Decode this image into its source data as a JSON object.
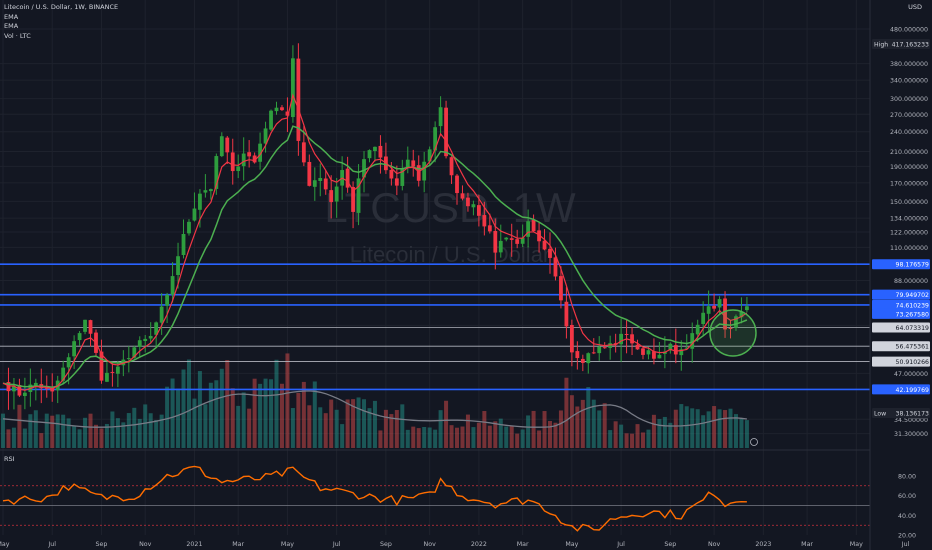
{
  "legend": {
    "title": "Litecoin / U.S. Dollar, 1W, BINANCE",
    "ema1": "EMA",
    "ema2": "EMA",
    "vol": "Vol · LTC"
  },
  "rsi_label": "RSI",
  "currency": "USD",
  "watermark": {
    "symbol": "LTCUSD, 1W",
    "name": "Litecoin / U.S. Dollar"
  },
  "colors": {
    "background": "#131722",
    "up": "#26a69a",
    "up_candle": "#2e9e3e",
    "down_candle": "#f23645",
    "ema_fast": "#f23645",
    "ema_slow": "#4caf50",
    "volume_ma": "#787b86",
    "hline_blue": "#2962ff",
    "hline_white": "#b2b5be",
    "rsi": "#ff6d00",
    "rsi_levels": "#cc2f3c"
  },
  "chart_data": {
    "type": "candlestick",
    "price_axis": {
      "scale": "log",
      "labels": [
        "480.000000",
        "380.000000",
        "340.000000",
        "300.000000",
        "270.000000",
        "240.000000",
        "210.000000",
        "190.000000",
        "170.000000",
        "150.000000",
        "134.000000",
        "122.000000",
        "110.000000",
        "88.000000",
        "65.000000",
        "47.000000",
        "34.500000",
        "31.300000"
      ],
      "label_values": [
        480,
        380,
        340,
        300,
        270,
        240,
        210,
        190,
        170,
        150,
        134,
        122,
        110,
        88,
        65,
        47,
        34.5,
        31.3
      ],
      "high_label": "High",
      "high_value": "417.163233",
      "low_label": "Low",
      "low_value": "38.136173"
    },
    "time_axis": {
      "labels": [
        "May",
        "Jul",
        "Sep",
        "Nov",
        "2021",
        "Mar",
        "May",
        "Jul",
        "Sep",
        "Nov",
        "2022",
        "Mar",
        "May",
        "Jul",
        "Sep",
        "Nov",
        "2023",
        "Mar",
        "May",
        "Jul"
      ],
      "label_index": [
        0,
        9,
        18,
        26,
        35,
        43,
        52,
        61,
        70,
        78,
        87,
        95,
        104,
        113,
        122,
        130,
        139,
        147,
        156,
        165
      ]
    },
    "horizontal_levels": [
      {
        "label": "98.176579",
        "value": 98.18,
        "style": "blue"
      },
      {
        "label": "79.949702",
        "value": 79.95,
        "style": "blue"
      },
      {
        "label": "74.610239",
        "value": 74.61,
        "style": "blue"
      },
      {
        "label": "73.267580",
        "value": 73.27,
        "style": "tag"
      },
      {
        "label": "64.073319",
        "value": 64.07,
        "style": "white"
      },
      {
        "label": "56.475361",
        "value": 56.48,
        "style": "white"
      },
      {
        "label": "50.910266",
        "value": 50.91,
        "style": "white"
      },
      {
        "label": "42.199769",
        "value": 42.2,
        "style": "blue"
      }
    ],
    "anchors": [
      [
        0,
        44
      ],
      [
        3,
        41
      ],
      [
        6,
        44
      ],
      [
        9,
        41
      ],
      [
        12,
        52
      ],
      [
        15,
        68
      ],
      [
        18,
        46
      ],
      [
        21,
        48
      ],
      [
        24,
        56
      ],
      [
        27,
        60
      ],
      [
        30,
        78
      ],
      [
        33,
        118
      ],
      [
        36,
        160
      ],
      [
        38,
        165
      ],
      [
        40,
        232
      ],
      [
        42,
        180
      ],
      [
        44,
        210
      ],
      [
        46,
        195
      ],
      [
        48,
        250
      ],
      [
        50,
        290
      ],
      [
        52,
        270
      ],
      [
        53,
        390
      ],
      [
        54,
        220
      ],
      [
        56,
        170
      ],
      [
        58,
        178
      ],
      [
        60,
        150
      ],
      [
        62,
        185
      ],
      [
        64,
        142
      ],
      [
        66,
        200
      ],
      [
        68,
        215
      ],
      [
        70,
        185
      ],
      [
        72,
        165
      ],
      [
        74,
        200
      ],
      [
        76,
        175
      ],
      [
        78,
        215
      ],
      [
        80,
        285
      ],
      [
        81,
        200
      ],
      [
        82,
        175
      ],
      [
        84,
        150
      ],
      [
        86,
        148
      ],
      [
        88,
        130
      ],
      [
        90,
        108
      ],
      [
        92,
        120
      ],
      [
        94,
        112
      ],
      [
        96,
        128
      ],
      [
        98,
        112
      ],
      [
        100,
        100
      ],
      [
        102,
        78
      ],
      [
        104,
        55
      ],
      [
        106,
        52
      ],
      [
        108,
        55
      ],
      [
        110,
        56
      ],
      [
        112,
        58
      ],
      [
        114,
        62
      ],
      [
        116,
        54
      ],
      [
        118,
        55
      ],
      [
        120,
        52
      ],
      [
        122,
        56
      ],
      [
        124,
        54
      ],
      [
        126,
        60
      ],
      [
        128,
        70
      ],
      [
        129,
        75
      ],
      [
        130,
        74
      ],
      [
        131,
        79
      ],
      [
        132,
        63
      ],
      [
        134,
        68
      ],
      [
        136,
        73
      ]
    ],
    "volume_anchors": [
      [
        0,
        0.45
      ],
      [
        10,
        0.3
      ],
      [
        20,
        0.35
      ],
      [
        30,
        0.55
      ],
      [
        35,
        0.9
      ],
      [
        45,
        0.75
      ],
      [
        52,
        1.0
      ],
      [
        60,
        0.55
      ],
      [
        70,
        0.4
      ],
      [
        80,
        0.45
      ],
      [
        90,
        0.3
      ],
      [
        100,
        0.35
      ],
      [
        104,
        1.0
      ],
      [
        110,
        0.4
      ],
      [
        120,
        0.3
      ],
      [
        130,
        0.55
      ],
      [
        136,
        0.3
      ]
    ],
    "rsi_axis": {
      "labels": [
        "80.00",
        "60.00",
        "40.00",
        "20.00"
      ],
      "values": [
        80,
        60,
        40,
        20
      ],
      "levels": [
        70,
        50,
        30
      ]
    },
    "rsi_anchors": [
      [
        0,
        55
      ],
      [
        8,
        58
      ],
      [
        12,
        70
      ],
      [
        18,
        58
      ],
      [
        24,
        60
      ],
      [
        30,
        80
      ],
      [
        35,
        88
      ],
      [
        40,
        74
      ],
      [
        48,
        78
      ],
      [
        53,
        85
      ],
      [
        58,
        68
      ],
      [
        66,
        60
      ],
      [
        72,
        55
      ],
      [
        78,
        60
      ],
      [
        80,
        75
      ],
      [
        84,
        60
      ],
      [
        90,
        52
      ],
      [
        96,
        56
      ],
      [
        100,
        45
      ],
      [
        104,
        28
      ],
      [
        108,
        25
      ],
      [
        112,
        38
      ],
      [
        118,
        44
      ],
      [
        124,
        40
      ],
      [
        128,
        55
      ],
      [
        130,
        64
      ],
      [
        132,
        52
      ],
      [
        136,
        58
      ]
    ]
  }
}
